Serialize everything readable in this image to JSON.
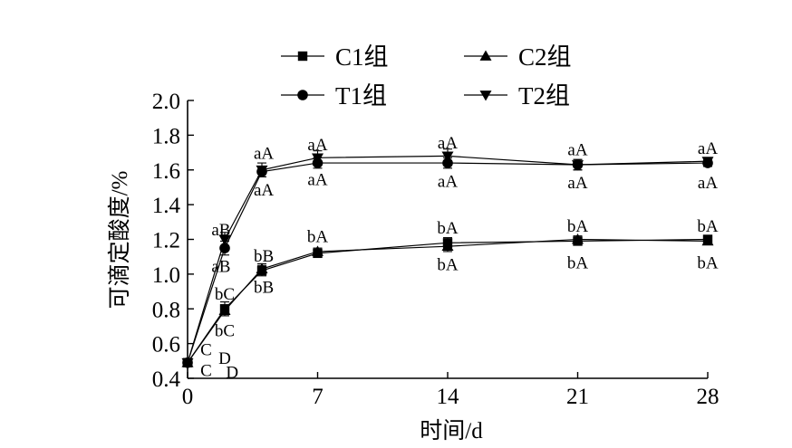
{
  "chart_data": {
    "type": "line",
    "xlabel": "时间/d",
    "ylabel": "可滴定酸度/%",
    "xlim": [
      0,
      28
    ],
    "ylim": [
      0.4,
      2.0
    ],
    "x_ticks": [
      0,
      7,
      14,
      21,
      28
    ],
    "y_ticks": [
      "0.4",
      "0.6",
      "0.8",
      "1.0",
      "1.2",
      "1.4",
      "1.6",
      "1.8",
      "2.0"
    ],
    "grid": false,
    "legend_position": "top",
    "x": [
      0,
      2,
      4,
      7,
      14,
      21,
      28
    ],
    "series": [
      {
        "name": "C1组",
        "marker": "square",
        "values": [
          0.49,
          0.8,
          1.02,
          1.12,
          1.18,
          1.19,
          1.2
        ],
        "errors": [
          0.02,
          0.04,
          0.03,
          0.02,
          0.03,
          0.02,
          0.02
        ]
      },
      {
        "name": "C2组",
        "marker": "triangle-up",
        "values": [
          0.49,
          0.79,
          1.03,
          1.13,
          1.16,
          1.2,
          1.19
        ],
        "errors": [
          0.02,
          0.03,
          0.03,
          0.02,
          0.03,
          0.02,
          0.02
        ]
      },
      {
        "name": "T1组",
        "marker": "circle",
        "values": [
          0.49,
          1.15,
          1.59,
          1.64,
          1.64,
          1.63,
          1.64
        ],
        "errors": [
          0.02,
          0.04,
          0.03,
          0.03,
          0.03,
          0.03,
          0.02
        ]
      },
      {
        "name": "T2组",
        "marker": "triangle-down",
        "values": [
          0.49,
          1.2,
          1.6,
          1.67,
          1.68,
          1.63,
          1.65
        ],
        "errors": [
          0.02,
          0.04,
          0.04,
          0.04,
          0.04,
          0.03,
          0.02
        ]
      }
    ],
    "annotations": [
      {
        "text": "C",
        "x": 1.0,
        "y": 0.57
      },
      {
        "text": "C",
        "x": 1.0,
        "y": 0.45
      },
      {
        "text": "D",
        "x": 2.0,
        "y": 0.52
      },
      {
        "text": "D",
        "x": 2.4,
        "y": 0.44
      },
      {
        "text": "aB",
        "x": 1.8,
        "y": 1.26
      },
      {
        "text": "aB",
        "x": 1.8,
        "y": 1.05
      },
      {
        "text": "bC",
        "x": 2.0,
        "y": 0.89
      },
      {
        "text": "bC",
        "x": 2.0,
        "y": 0.68
      },
      {
        "text": "aA",
        "x": 4.1,
        "y": 1.7
      },
      {
        "text": "aA",
        "x": 4.1,
        "y": 1.49
      },
      {
        "text": "bB",
        "x": 4.1,
        "y": 1.11
      },
      {
        "text": "bB",
        "x": 4.1,
        "y": 0.93
      },
      {
        "text": "aA",
        "x": 7.0,
        "y": 1.75
      },
      {
        "text": "aA",
        "x": 7.0,
        "y": 1.55
      },
      {
        "text": "bA",
        "x": 7.0,
        "y": 1.22
      },
      {
        "text": "aA",
        "x": 14.0,
        "y": 1.76
      },
      {
        "text": "aA",
        "x": 14.0,
        "y": 1.54
      },
      {
        "text": "bA",
        "x": 14.0,
        "y": 1.27
      },
      {
        "text": "bA",
        "x": 14.0,
        "y": 1.06
      },
      {
        "text": "aA",
        "x": 21.0,
        "y": 1.72
      },
      {
        "text": "aA",
        "x": 21.0,
        "y": 1.53
      },
      {
        "text": "bA",
        "x": 21.0,
        "y": 1.28
      },
      {
        "text": "bA",
        "x": 21.0,
        "y": 1.07
      },
      {
        "text": "aA",
        "x": 28.0,
        "y": 1.73
      },
      {
        "text": "aA",
        "x": 28.0,
        "y": 1.53
      },
      {
        "text": "bA",
        "x": 28.0,
        "y": 1.28
      },
      {
        "text": "bA",
        "x": 28.0,
        "y": 1.07
      }
    ]
  }
}
